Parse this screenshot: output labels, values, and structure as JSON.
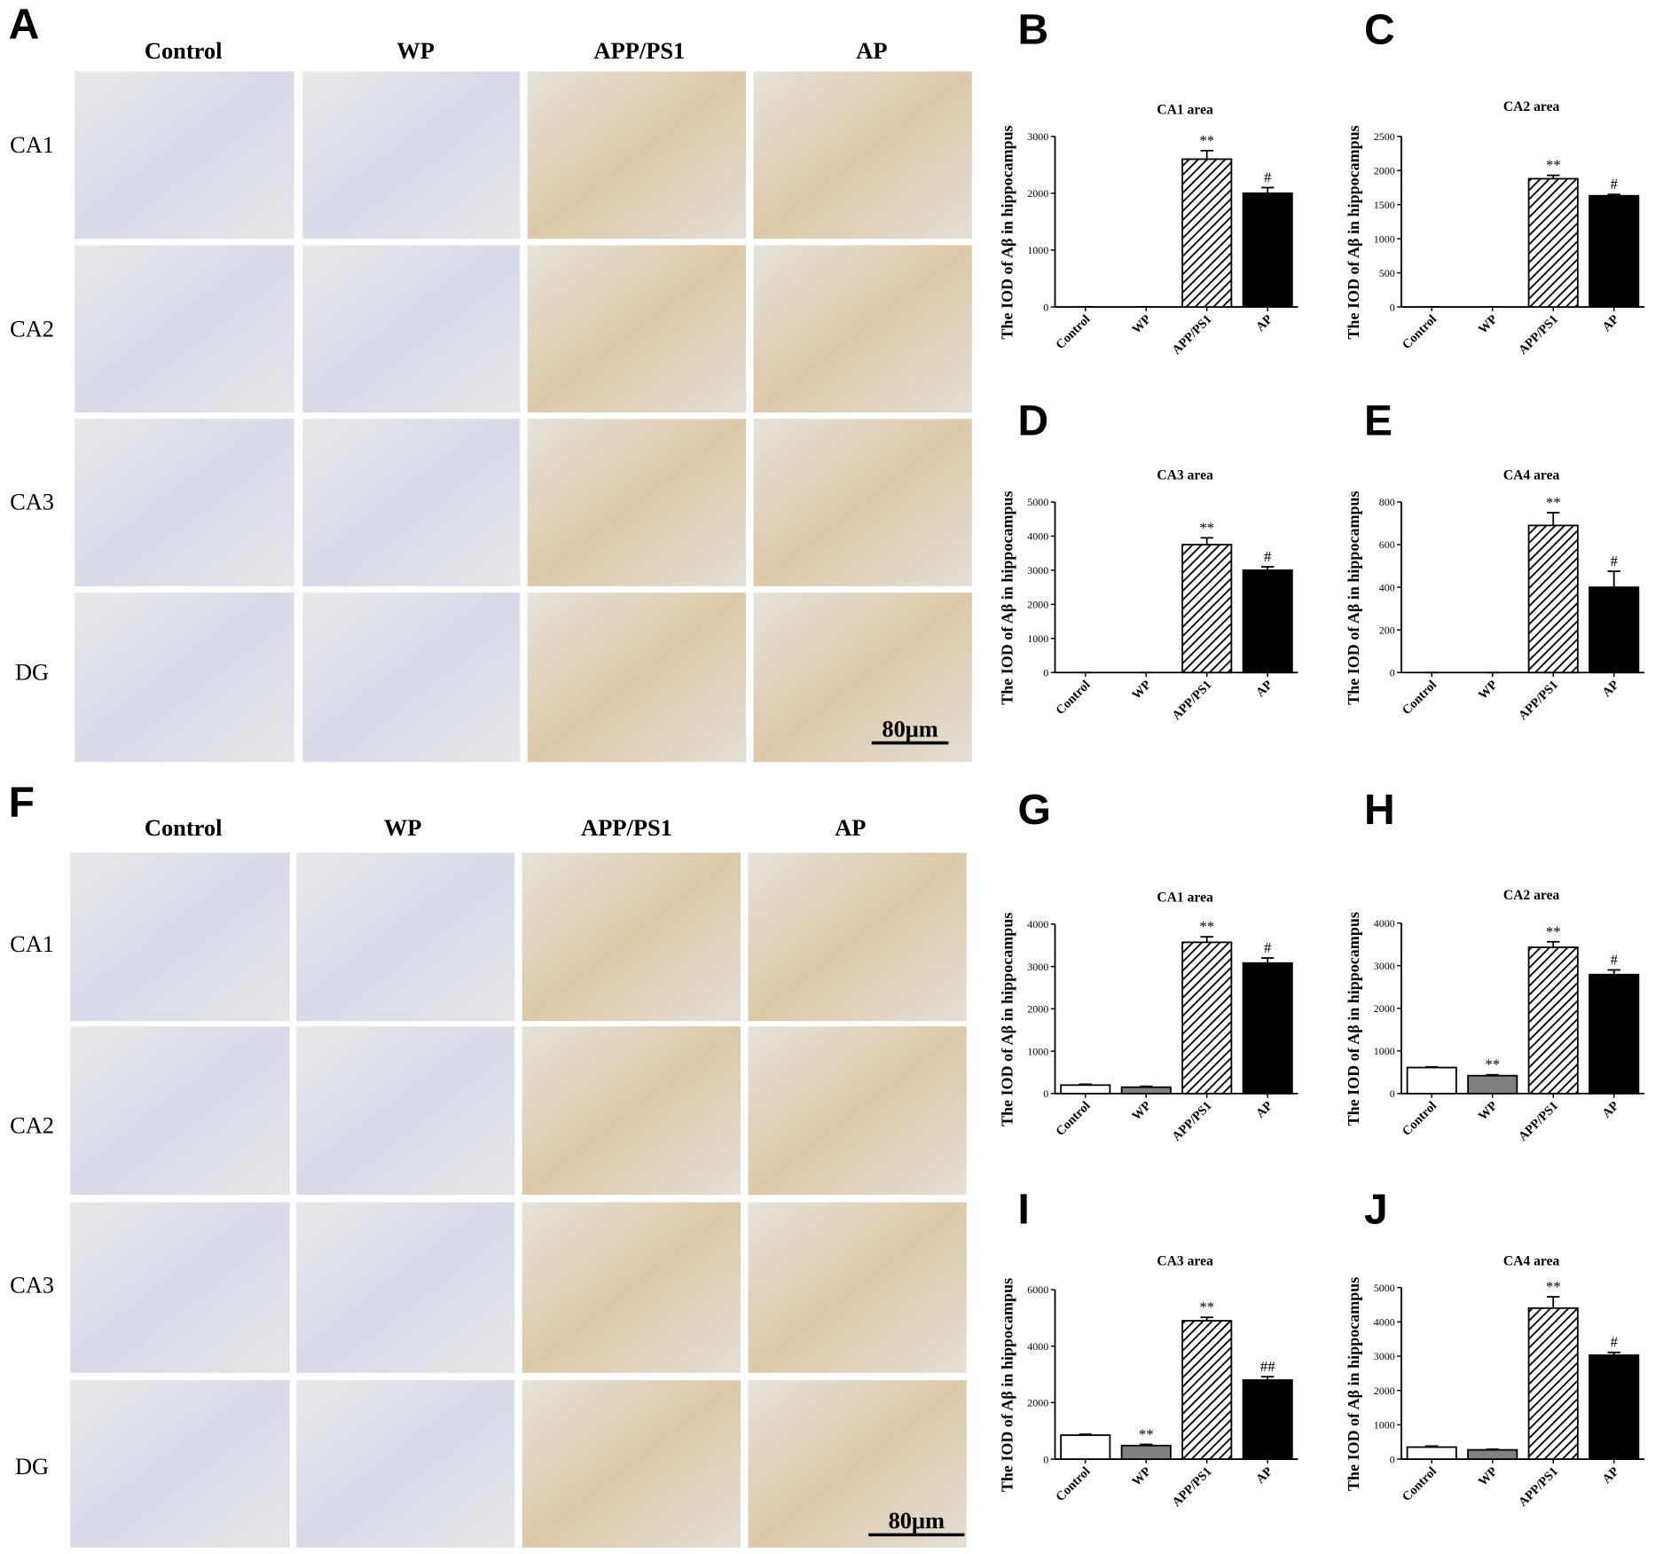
{
  "micrograph_panels": [
    {
      "panel": "A",
      "columns": [
        "Control",
        "WP",
        "APP/PS1",
        "AP"
      ],
      "rows": [
        "CA1",
        "CA2",
        "CA3",
        "DG"
      ],
      "scale_bar": "80μm"
    },
    {
      "panel": "F",
      "columns": [
        "Control",
        "WP",
        "APP/PS1",
        "AP"
      ],
      "rows": [
        "CA1",
        "CA2",
        "CA3",
        "DG"
      ],
      "scale_bar": "80μm"
    }
  ],
  "chart_data": [
    {
      "type": "bar",
      "panel": "B",
      "title": "CA1 area",
      "y_label": "The IOD of Aβ in hippocampus",
      "categories": [
        "Control",
        "WP",
        "APP/PS1",
        "AP"
      ],
      "values": [
        0,
        0,
        2600,
        2000
      ],
      "errors": [
        0,
        0,
        150,
        100
      ],
      "colors": [
        "#ffffff",
        "#808080",
        "#ffffff",
        "#000000"
      ],
      "hatch": [
        false,
        false,
        true,
        false
      ],
      "annotations": [
        null,
        null,
        "**",
        "#"
      ],
      "ylim": [
        0,
        3000
      ],
      "yticks": [
        0,
        1000,
        2000,
        3000
      ]
    },
    {
      "type": "bar",
      "panel": "C",
      "title": "CA2 area",
      "y_label": "The IOD of Aβ in hippocampus",
      "categories": [
        "Control",
        "WP",
        "APP/PS1",
        "AP"
      ],
      "values": [
        0,
        0,
        1880,
        1630
      ],
      "errors": [
        0,
        0,
        50,
        20
      ],
      "colors": [
        "#ffffff",
        "#808080",
        "#ffffff",
        "#000000"
      ],
      "hatch": [
        false,
        false,
        true,
        false
      ],
      "annotations": [
        null,
        null,
        "**",
        "#"
      ],
      "ylim": [
        0,
        2500
      ],
      "yticks": [
        0,
        500,
        1000,
        1500,
        2000,
        2500
      ]
    },
    {
      "type": "bar",
      "panel": "D",
      "title": "CA3 area",
      "y_label": "The IOD of Aβ in hippocampus",
      "categories": [
        "Control",
        "WP",
        "APP/PS1",
        "AP"
      ],
      "values": [
        0,
        0,
        3750,
        3000
      ],
      "errors": [
        0,
        0,
        200,
        100
      ],
      "colors": [
        "#ffffff",
        "#808080",
        "#ffffff",
        "#000000"
      ],
      "hatch": [
        false,
        false,
        true,
        false
      ],
      "annotations": [
        null,
        null,
        "**",
        "#"
      ],
      "ylim": [
        0,
        5000
      ],
      "yticks": [
        0,
        1000,
        2000,
        3000,
        4000,
        5000
      ]
    },
    {
      "type": "bar",
      "panel": "E",
      "title": "CA4 area",
      "y_label": "The IOD of Aβ in hippocampus",
      "categories": [
        "Control",
        "WP",
        "APP/PS1",
        "AP"
      ],
      "values": [
        0,
        0,
        690,
        400
      ],
      "errors": [
        0,
        0,
        60,
        75
      ],
      "colors": [
        "#ffffff",
        "#808080",
        "#ffffff",
        "#000000"
      ],
      "hatch": [
        false,
        false,
        true,
        false
      ],
      "annotations": [
        null,
        null,
        "**",
        "#"
      ],
      "ylim": [
        0,
        800
      ],
      "yticks": [
        0,
        200,
        400,
        600,
        800
      ]
    },
    {
      "type": "bar",
      "panel": "G",
      "title": "CA1 area",
      "y_label": "The IOD of Aβ in hippocampus",
      "categories": [
        "Control",
        "WP",
        "APP/PS1",
        "AP"
      ],
      "values": [
        200,
        150,
        3570,
        3080
      ],
      "errors": [
        20,
        20,
        130,
        120
      ],
      "colors": [
        "#ffffff",
        "#808080",
        "#ffffff",
        "#000000"
      ],
      "hatch": [
        false,
        false,
        true,
        false
      ],
      "annotations": [
        null,
        null,
        "**",
        "#"
      ],
      "ylim": [
        0,
        4000
      ],
      "yticks": [
        0,
        1000,
        2000,
        3000,
        4000
      ]
    },
    {
      "type": "bar",
      "panel": "H",
      "title": "CA2 area",
      "y_label": "The IOD of Aβ in hippocampus",
      "categories": [
        "Control",
        "WP",
        "APP/PS1",
        "AP"
      ],
      "values": [
        610,
        420,
        3430,
        2790
      ],
      "errors": [
        15,
        20,
        130,
        110
      ],
      "colors": [
        "#ffffff",
        "#808080",
        "#ffffff",
        "#000000"
      ],
      "hatch": [
        false,
        false,
        true,
        false
      ],
      "annotations": [
        null,
        "**",
        "**",
        "#"
      ],
      "ylim": [
        0,
        4000
      ],
      "yticks": [
        0,
        1000,
        2000,
        3000,
        4000
      ]
    },
    {
      "type": "bar",
      "panel": "I",
      "title": "CA3 area",
      "y_label": "The IOD of Aβ in hippocampus",
      "categories": [
        "Control",
        "WP",
        "APP/PS1",
        "AP"
      ],
      "values": [
        850,
        480,
        4900,
        2800
      ],
      "errors": [
        30,
        40,
        120,
        120
      ],
      "colors": [
        "#ffffff",
        "#808080",
        "#ffffff",
        "#000000"
      ],
      "hatch": [
        false,
        false,
        true,
        false
      ],
      "annotations": [
        null,
        "**",
        "**",
        "##"
      ],
      "ylim": [
        0,
        6000
      ],
      "yticks": [
        0,
        2000,
        4000,
        6000
      ]
    },
    {
      "type": "bar",
      "panel": "J",
      "title": "CA4 area",
      "y_label": "The IOD of Aβ in hippocampus",
      "categories": [
        "Control",
        "WP",
        "APP/PS1",
        "AP"
      ],
      "values": [
        350,
        270,
        4400,
        3030
      ],
      "errors": [
        30,
        20,
        330,
        80
      ],
      "colors": [
        "#ffffff",
        "#808080",
        "#ffffff",
        "#000000"
      ],
      "hatch": [
        false,
        false,
        true,
        false
      ],
      "annotations": [
        null,
        null,
        "**",
        "#"
      ],
      "ylim": [
        0,
        5000
      ],
      "yticks": [
        0,
        1000,
        2000,
        3000,
        4000,
        5000
      ]
    }
  ]
}
